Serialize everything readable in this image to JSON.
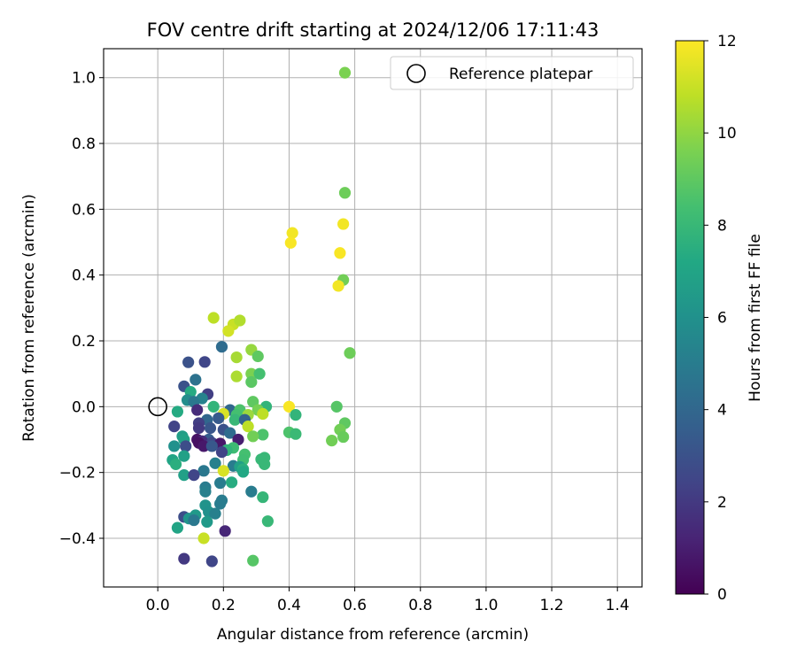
{
  "chart_data": {
    "type": "scatter",
    "title": "FOV centre drift starting at 2024/12/06 17:11:43",
    "xlabel": "Angular distance from reference (arcmin)",
    "ylabel": "Rotation from reference (arcmin)",
    "xlim": [
      -0.165,
      1.475
    ],
    "ylim": [
      -0.548,
      1.088
    ],
    "xticks": [
      0.0,
      0.2,
      0.4,
      0.6,
      0.8,
      1.0,
      1.2,
      1.4
    ],
    "xtick_labels": [
      "0.0",
      "0.2",
      "0.4",
      "0.6",
      "0.8",
      "1.0",
      "1.2",
      "1.4"
    ],
    "yticks": [
      -0.4,
      -0.2,
      0.0,
      0.2,
      0.4,
      0.6,
      0.8,
      1.0
    ],
    "ytick_labels": [
      "−0.4",
      "−0.2",
      "0.0",
      "0.2",
      "0.4",
      "0.6",
      "0.8",
      "1.0"
    ],
    "grid": true,
    "legend": {
      "label": "Reference platepar",
      "placement": "top-right"
    },
    "reference_point": {
      "x": 0.0,
      "y": 0.0
    },
    "colorbar": {
      "label": "Hours from first FF file",
      "range": [
        0,
        12
      ],
      "ticks": [
        0,
        2,
        4,
        6,
        8,
        10,
        12
      ],
      "tick_labels": [
        "0",
        "2",
        "4",
        "6",
        "8",
        "10",
        "12"
      ],
      "colormap": "viridis"
    },
    "points": [
      {
        "x": 0.57,
        "y": 1.015,
        "h": 9.6
      },
      {
        "x": 0.57,
        "y": 0.65,
        "h": 9.3
      },
      {
        "x": 0.565,
        "y": 0.555,
        "h": 11.8
      },
      {
        "x": 0.41,
        "y": 0.528,
        "h": 11.8
      },
      {
        "x": 0.405,
        "y": 0.498,
        "h": 11.9
      },
      {
        "x": 0.555,
        "y": 0.467,
        "h": 11.9
      },
      {
        "x": 0.565,
        "y": 0.385,
        "h": 9.4
      },
      {
        "x": 0.55,
        "y": 0.367,
        "h": 11.8
      },
      {
        "x": 0.17,
        "y": 0.27,
        "h": 10.8
      },
      {
        "x": 0.23,
        "y": 0.25,
        "h": 11.0
      },
      {
        "x": 0.25,
        "y": 0.262,
        "h": 10.6
      },
      {
        "x": 0.215,
        "y": 0.23,
        "h": 11.2
      },
      {
        "x": 0.195,
        "y": 0.182,
        "h": 4.2
      },
      {
        "x": 0.285,
        "y": 0.173,
        "h": 10.1
      },
      {
        "x": 0.585,
        "y": 0.163,
        "h": 9.3
      },
      {
        "x": 0.24,
        "y": 0.15,
        "h": 10.4
      },
      {
        "x": 0.305,
        "y": 0.153,
        "h": 9.0
      },
      {
        "x": 0.093,
        "y": 0.135,
        "h": 3.0
      },
      {
        "x": 0.143,
        "y": 0.136,
        "h": 2.5
      },
      {
        "x": 0.285,
        "y": 0.1,
        "h": 9.6
      },
      {
        "x": 0.31,
        "y": 0.1,
        "h": 8.4
      },
      {
        "x": 0.24,
        "y": 0.092,
        "h": 10.5
      },
      {
        "x": 0.285,
        "y": 0.075,
        "h": 8.9
      },
      {
        "x": 0.115,
        "y": 0.082,
        "h": 4.5
      },
      {
        "x": 0.08,
        "y": 0.062,
        "h": 3.0
      },
      {
        "x": 0.1,
        "y": 0.045,
        "h": 7.3
      },
      {
        "x": 0.152,
        "y": 0.038,
        "h": 2.2
      },
      {
        "x": 0.135,
        "y": 0.025,
        "h": 5.3
      },
      {
        "x": 0.09,
        "y": 0.02,
        "h": 5.8
      },
      {
        "x": 0.11,
        "y": 0.015,
        "h": 4.8
      },
      {
        "x": 0.29,
        "y": 0.015,
        "h": 9.0
      },
      {
        "x": 0.4,
        "y": 0.0,
        "h": 11.9
      },
      {
        "x": 0.545,
        "y": 0.0,
        "h": 8.8
      },
      {
        "x": 0.06,
        "y": -0.015,
        "h": 7.3
      },
      {
        "x": 0.12,
        "y": -0.01,
        "h": 1.5
      },
      {
        "x": 0.17,
        "y": 0.0,
        "h": 7.8
      },
      {
        "x": 0.22,
        "y": -0.01,
        "h": 4.0
      },
      {
        "x": 0.25,
        "y": -0.01,
        "h": 8.6
      },
      {
        "x": 0.33,
        "y": 0.0,
        "h": 7.8
      },
      {
        "x": 0.305,
        "y": -0.01,
        "h": 9.5
      },
      {
        "x": 0.32,
        "y": -0.022,
        "h": 10.8
      },
      {
        "x": 0.2,
        "y": -0.022,
        "h": 11.3
      },
      {
        "x": 0.275,
        "y": -0.025,
        "h": 10.2
      },
      {
        "x": 0.24,
        "y": -0.025,
        "h": 8.4
      },
      {
        "x": 0.42,
        "y": -0.025,
        "h": 7.8
      },
      {
        "x": 0.185,
        "y": -0.035,
        "h": 3.4
      },
      {
        "x": 0.15,
        "y": -0.04,
        "h": 4.0
      },
      {
        "x": 0.235,
        "y": -0.04,
        "h": 8.0
      },
      {
        "x": 0.265,
        "y": -0.04,
        "h": 3.8
      },
      {
        "x": 0.125,
        "y": -0.05,
        "h": 2.2
      },
      {
        "x": 0.57,
        "y": -0.05,
        "h": 9.0
      },
      {
        "x": 0.05,
        "y": -0.06,
        "h": 2.4
      },
      {
        "x": 0.275,
        "y": -0.06,
        "h": 10.8
      },
      {
        "x": 0.125,
        "y": -0.065,
        "h": 2.0
      },
      {
        "x": 0.16,
        "y": -0.065,
        "h": 3.2
      },
      {
        "x": 0.2,
        "y": -0.07,
        "h": 3.0
      },
      {
        "x": 0.555,
        "y": -0.07,
        "h": 9.4
      },
      {
        "x": 0.22,
        "y": -0.08,
        "h": 4.2
      },
      {
        "x": 0.4,
        "y": -0.078,
        "h": 8.6
      },
      {
        "x": 0.42,
        "y": -0.083,
        "h": 8.1
      },
      {
        "x": 0.32,
        "y": -0.085,
        "h": 8.6
      },
      {
        "x": 0.29,
        "y": -0.09,
        "h": 9.4
      },
      {
        "x": 0.075,
        "y": -0.09,
        "h": 6.7
      },
      {
        "x": 0.565,
        "y": -0.092,
        "h": 9.2
      },
      {
        "x": 0.12,
        "y": -0.1,
        "h": 0.6
      },
      {
        "x": 0.155,
        "y": -0.1,
        "h": 3.5
      },
      {
        "x": 0.245,
        "y": -0.1,
        "h": 1.0
      },
      {
        "x": 0.08,
        "y": -0.1,
        "h": 6.9
      },
      {
        "x": 0.53,
        "y": -0.103,
        "h": 9.4
      },
      {
        "x": 0.135,
        "y": -0.105,
        "h": 1.5
      },
      {
        "x": 0.165,
        "y": -0.11,
        "h": 2.6
      },
      {
        "x": 0.125,
        "y": -0.11,
        "h": 0.5
      },
      {
        "x": 0.19,
        "y": -0.112,
        "h": 0.8
      },
      {
        "x": 0.05,
        "y": -0.12,
        "h": 6.0
      },
      {
        "x": 0.14,
        "y": -0.12,
        "h": 0.8
      },
      {
        "x": 0.165,
        "y": -0.12,
        "h": 3.3
      },
      {
        "x": 0.085,
        "y": -0.12,
        "h": 2.8
      },
      {
        "x": 0.23,
        "y": -0.125,
        "h": 8.2
      },
      {
        "x": 0.21,
        "y": -0.132,
        "h": 7.8
      },
      {
        "x": 0.195,
        "y": -0.138,
        "h": 2.4
      },
      {
        "x": 0.265,
        "y": -0.145,
        "h": 8.4
      },
      {
        "x": 0.08,
        "y": -0.15,
        "h": 6.8
      },
      {
        "x": 0.325,
        "y": -0.155,
        "h": 8.0
      },
      {
        "x": 0.315,
        "y": -0.16,
        "h": 8.0
      },
      {
        "x": 0.045,
        "y": -0.162,
        "h": 7.0
      },
      {
        "x": 0.26,
        "y": -0.162,
        "h": 8.3
      },
      {
        "x": 0.055,
        "y": -0.175,
        "h": 7.5
      },
      {
        "x": 0.325,
        "y": -0.175,
        "h": 8.0
      },
      {
        "x": 0.175,
        "y": -0.172,
        "h": 5.2
      },
      {
        "x": 0.23,
        "y": -0.18,
        "h": 5.0
      },
      {
        "x": 0.25,
        "y": -0.183,
        "h": 6.8
      },
      {
        "x": 0.26,
        "y": -0.19,
        "h": 7.5
      },
      {
        "x": 0.14,
        "y": -0.195,
        "h": 4.8
      },
      {
        "x": 0.2,
        "y": -0.195,
        "h": 11.3
      },
      {
        "x": 0.26,
        "y": -0.198,
        "h": 7.2
      },
      {
        "x": 0.08,
        "y": -0.208,
        "h": 6.8
      },
      {
        "x": 0.11,
        "y": -0.208,
        "h": 2.5
      },
      {
        "x": 0.225,
        "y": -0.23,
        "h": 7.4
      },
      {
        "x": 0.19,
        "y": -0.232,
        "h": 5.0
      },
      {
        "x": 0.145,
        "y": -0.245,
        "h": 5.0
      },
      {
        "x": 0.145,
        "y": -0.258,
        "h": 5.2
      },
      {
        "x": 0.285,
        "y": -0.258,
        "h": 5.0
      },
      {
        "x": 0.32,
        "y": -0.275,
        "h": 7.9
      },
      {
        "x": 0.195,
        "y": -0.285,
        "h": 5.0
      },
      {
        "x": 0.19,
        "y": -0.295,
        "h": 5.0
      },
      {
        "x": 0.145,
        "y": -0.3,
        "h": 6.1
      },
      {
        "x": 0.155,
        "y": -0.32,
        "h": 6.0
      },
      {
        "x": 0.175,
        "y": -0.325,
        "h": 5.2
      },
      {
        "x": 0.115,
        "y": -0.33,
        "h": 6.4
      },
      {
        "x": 0.08,
        "y": -0.335,
        "h": 2.8
      },
      {
        "x": 0.095,
        "y": -0.34,
        "h": 6.2
      },
      {
        "x": 0.11,
        "y": -0.345,
        "h": 4.8
      },
      {
        "x": 0.335,
        "y": -0.348,
        "h": 8.0
      },
      {
        "x": 0.15,
        "y": -0.35,
        "h": 6.4
      },
      {
        "x": 0.06,
        "y": -0.368,
        "h": 7.0
      },
      {
        "x": 0.205,
        "y": -0.378,
        "h": 1.3
      },
      {
        "x": 0.14,
        "y": -0.4,
        "h": 11.0
      },
      {
        "x": 0.08,
        "y": -0.462,
        "h": 2.0
      },
      {
        "x": 0.29,
        "y": -0.468,
        "h": 8.8
      },
      {
        "x": 0.165,
        "y": -0.47,
        "h": 2.5
      }
    ]
  }
}
